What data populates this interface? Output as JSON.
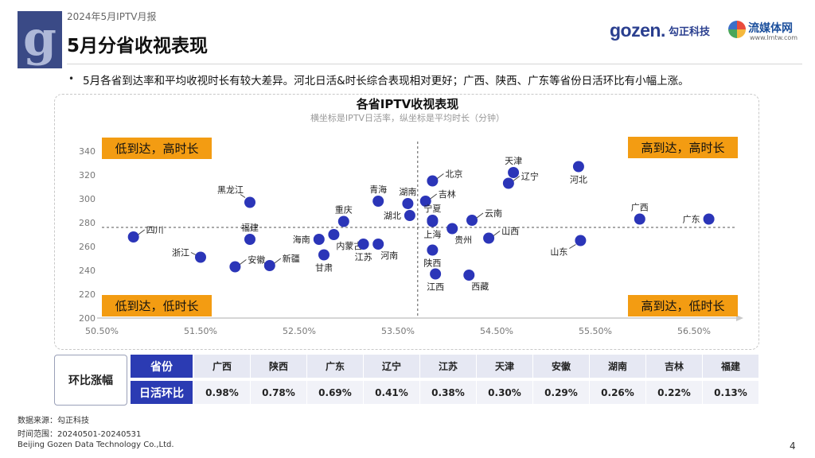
{
  "header": {
    "report_label": "2024年5月IPTV月报",
    "page_title": "5月分省收视表现",
    "brand_gozen": "gozen.",
    "brand_gozen_cn": "勾正科技",
    "brand_lmt": "流媒体网",
    "brand_lmt_url": "www.lmtw.com",
    "logo_glyph": "g"
  },
  "summary": {
    "bullet": "•",
    "text": "5月各省到达率和平均收视时长有较大差异。河北日活&时长综合表现相对更好；广西、陕西、广东等省份日活环比有小幅上涨。"
  },
  "colors": {
    "point": "#2b35b8",
    "quadrant_label_bg": "#f39c12",
    "table_header": "#2b3bb3"
  },
  "chart_data": {
    "type": "scatter",
    "title": "各省IPTV收视表现",
    "subtitle": "横坐标是IPTV日活率，纵坐标是平均时长（分钟）",
    "xlabel": "IPTV日活率",
    "ylabel": "平均时长（分钟）",
    "xlim": [
      50.5,
      57.0
    ],
    "ylim": [
      200,
      340
    ],
    "x_ticks": [
      "50.50%",
      "51.50%",
      "52.50%",
      "53.50%",
      "54.50%",
      "55.50%",
      "56.50%"
    ],
    "x_tick_values": [
      50.5,
      51.5,
      52.5,
      53.5,
      54.5,
      55.5,
      56.5
    ],
    "y_ticks": [
      "200",
      "220",
      "240",
      "260",
      "280",
      "300",
      "320",
      "340"
    ],
    "y_tick_values": [
      200,
      220,
      240,
      260,
      280,
      300,
      320,
      340
    ],
    "ref_x": 53.7,
    "ref_y": 276,
    "quadrant_labels": {
      "top_left": "低到达，高时长",
      "top_right": "高到达，高时长",
      "bottom_left": "低到达，低时长",
      "bottom_right": "高到达，低时长"
    },
    "points": [
      {
        "name": "四川",
        "x": 50.82,
        "y": 268,
        "lp": "r-leader"
      },
      {
        "name": "浙江",
        "x": 51.5,
        "y": 251,
        "lp": "l-leader"
      },
      {
        "name": "黑龙江",
        "x": 52.0,
        "y": 297,
        "lp": "tl-leader"
      },
      {
        "name": "福建",
        "x": 52.0,
        "y": 266,
        "lp": "t"
      },
      {
        "name": "安徽",
        "x": 51.85,
        "y": 243,
        "lp": "r-leader"
      },
      {
        "name": "新疆",
        "x": 52.2,
        "y": 244,
        "lp": "r-leader"
      },
      {
        "name": "海南",
        "x": 52.7,
        "y": 266,
        "lp": "l"
      },
      {
        "name": "重庆",
        "x": 52.95,
        "y": 281,
        "lp": "t"
      },
      {
        "name": "内蒙古",
        "x": 52.85,
        "y": 270,
        "lp": "br"
      },
      {
        "name": "甘肃",
        "x": 52.75,
        "y": 253,
        "lp": "b"
      },
      {
        "name": "江苏",
        "x": 53.15,
        "y": 262,
        "lp": "b"
      },
      {
        "name": "河南",
        "x": 53.3,
        "y": 262,
        "lp": "br"
      },
      {
        "name": "青海",
        "x": 53.3,
        "y": 298,
        "lp": "t"
      },
      {
        "name": "湖南",
        "x": 53.6,
        "y": 296,
        "lp": "t"
      },
      {
        "name": "湖北",
        "x": 53.62,
        "y": 286,
        "lp": "l"
      },
      {
        "name": "北京",
        "x": 53.85,
        "y": 315,
        "lp": "r-leader"
      },
      {
        "name": "吉林",
        "x": 53.78,
        "y": 298,
        "lp": "r-leader"
      },
      {
        "name": "宁夏",
        "x": 53.85,
        "y": 282,
        "lp": "t"
      },
      {
        "name": "上海",
        "x": 53.85,
        "y": 281,
        "lp": "b"
      },
      {
        "name": "陕西",
        "x": 53.85,
        "y": 257,
        "lp": "b"
      },
      {
        "name": "江西",
        "x": 53.88,
        "y": 237,
        "lp": "b"
      },
      {
        "name": "贵州",
        "x": 54.05,
        "y": 275,
        "lp": "br"
      },
      {
        "name": "云南",
        "x": 54.25,
        "y": 282,
        "lp": "r-leader"
      },
      {
        "name": "山西",
        "x": 54.42,
        "y": 267,
        "lp": "r-leader"
      },
      {
        "name": "西藏",
        "x": 54.22,
        "y": 236,
        "lp": "br"
      },
      {
        "name": "天津",
        "x": 54.67,
        "y": 322,
        "lp": "t"
      },
      {
        "name": "辽宁",
        "x": 54.62,
        "y": 313,
        "lp": "r-leader"
      },
      {
        "name": "河北",
        "x": 55.33,
        "y": 327,
        "lp": "b"
      },
      {
        "name": "山东",
        "x": 55.35,
        "y": 265,
        "lp": "bl-leader"
      },
      {
        "name": "广西",
        "x": 55.95,
        "y": 283,
        "lp": "t"
      },
      {
        "name": "广东",
        "x": 56.65,
        "y": 283,
        "lp": "l"
      }
    ]
  },
  "table": {
    "label": "环比涨幅",
    "row1_header": "省份",
    "row2_header": "日活环比",
    "provinces": [
      "广西",
      "陕西",
      "广东",
      "辽宁",
      "江苏",
      "天津",
      "安徽",
      "湖南",
      "吉林",
      "福建"
    ],
    "changes": [
      "0.98%",
      "0.78%",
      "0.69%",
      "0.41%",
      "0.38%",
      "0.30%",
      "0.29%",
      "0.26%",
      "0.22%",
      "0.13%"
    ]
  },
  "footer": {
    "source": "数据来源：勾正科技",
    "period": "时间范围：20240501-20240531",
    "company": "Beijing Gozen Data Technology Co.,Ltd.",
    "page_number": "4"
  }
}
